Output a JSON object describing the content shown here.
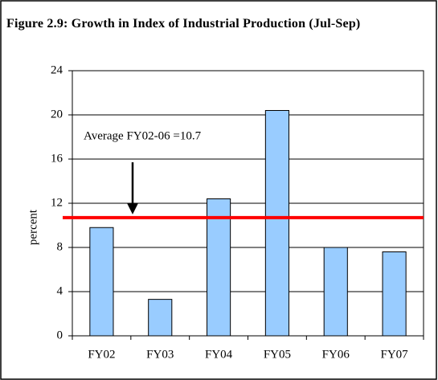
{
  "chart_data": {
    "type": "bar",
    "title": "Figure 2.9: Growth in Index of Industrial Production (Jul-Sep)",
    "ylabel": "percent",
    "categories": [
      "FY02",
      "FY03",
      "FY04",
      "FY05",
      "FY06",
      "FY07"
    ],
    "values": [
      9.8,
      3.3,
      12.4,
      20.4,
      8.0,
      7.6
    ],
    "color": "#99ccff",
    "ylim": [
      0,
      24
    ],
    "yticks": [
      0,
      4,
      8,
      12,
      16,
      20,
      24
    ],
    "grid": true,
    "average": {
      "label": "Average FY02-06 =10.7",
      "value": 10.7,
      "color": "#ff0000"
    }
  }
}
